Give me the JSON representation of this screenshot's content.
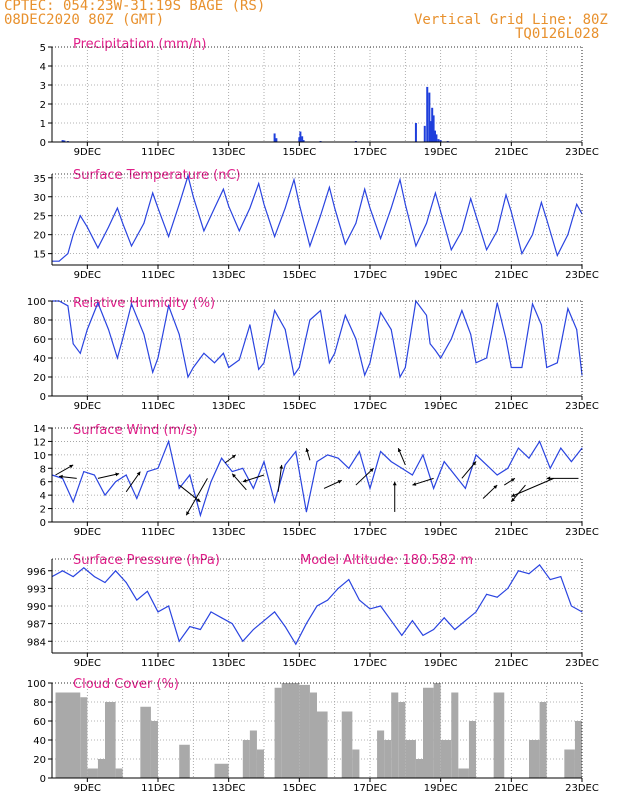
{
  "header": {
    "line1": "CPTEC:   054:23W-31:19S   BAGE (RS)",
    "line2": "08DEC2020 80Z (GMT)",
    "right1": "Vertical Grid Line: 80Z",
    "right2": "TQ0126L028"
  },
  "x_ticks": [
    "9DEC",
    "11DEC",
    "13DEC",
    "15DEC",
    "17DEC",
    "19DEC",
    "21DEC",
    "23DEC"
  ],
  "chart_data": [
    {
      "id": "precip",
      "type": "bar",
      "title": "Precipitation (mm/h)",
      "ylim": [
        0,
        5
      ],
      "yticks": [
        0,
        1,
        2,
        3,
        4,
        5
      ],
      "x_range": [
        8.0,
        23.0
      ],
      "x": [
        8.3,
        8.35,
        8.45,
        14.3,
        14.35,
        15.0,
        15.03,
        15.08,
        15.12,
        15.6,
        16.6,
        18.3,
        18.55,
        18.62,
        18.68,
        18.72,
        18.76,
        18.8,
        18.84,
        18.88,
        18.94,
        19.0,
        19.2
      ],
      "y": [
        0.1,
        0.08,
        0.05,
        0.45,
        0.2,
        0.25,
        0.55,
        0.3,
        0.1,
        0.05,
        0.05,
        1.0,
        0.85,
        2.9,
        2.6,
        1.1,
        1.8,
        1.4,
        0.6,
        0.4,
        0.15,
        0.1,
        0.05
      ]
    },
    {
      "id": "temp",
      "type": "line",
      "title": "Surface Temperature (nC)",
      "ylim": [
        12,
        36
      ],
      "yticks": [
        15,
        20,
        25,
        30,
        35
      ],
      "x_range": [
        8.0,
        23.0
      ],
      "x": [
        8.0,
        8.2,
        8.45,
        8.6,
        8.8,
        9.0,
        9.3,
        9.6,
        9.85,
        10.0,
        10.25,
        10.6,
        10.85,
        11.0,
        11.3,
        11.6,
        11.85,
        12.0,
        12.3,
        12.6,
        12.85,
        13.0,
        13.3,
        13.6,
        13.85,
        14.0,
        14.3,
        14.6,
        14.85,
        15.0,
        15.3,
        15.6,
        15.85,
        16.0,
        16.3,
        16.6,
        16.85,
        17.0,
        17.3,
        17.6,
        17.85,
        18.0,
        18.3,
        18.6,
        18.85,
        19.0,
        19.3,
        19.6,
        19.85,
        20.0,
        20.3,
        20.6,
        20.85,
        21.0,
        21.3,
        21.6,
        21.85,
        22.0,
        22.3,
        22.6,
        22.85,
        23.0
      ],
      "y": [
        13.0,
        13.0,
        15.0,
        20.0,
        25.0,
        22.0,
        16.5,
        22.0,
        27.0,
        23.0,
        17.0,
        23.0,
        31.0,
        27.0,
        19.5,
        28.0,
        35.5,
        30.0,
        21.0,
        27.0,
        32.0,
        27.5,
        21.0,
        27.0,
        33.5,
        28.0,
        19.5,
        27.0,
        34.5,
        28.0,
        17.0,
        25.0,
        32.5,
        27.0,
        17.5,
        23.0,
        32.0,
        27.0,
        19.0,
        27.0,
        34.5,
        28.0,
        17.0,
        23.0,
        31.0,
        26.0,
        16.0,
        21.0,
        29.5,
        25.0,
        16.0,
        21.0,
        30.5,
        26.0,
        15.0,
        20.0,
        28.5,
        24.0,
        14.5,
        20.0,
        28.0,
        25.5
      ]
    },
    {
      "id": "rh",
      "type": "line",
      "title": "Relative Humidity (%)",
      "ylim": [
        0,
        100
      ],
      "yticks": [
        0,
        20,
        40,
        60,
        80,
        100
      ],
      "x_range": [
        8.0,
        23.0
      ],
      "x": [
        8.0,
        8.2,
        8.45,
        8.6,
        8.8,
        9.0,
        9.3,
        9.6,
        9.85,
        10.0,
        10.25,
        10.6,
        10.85,
        11.0,
        11.3,
        11.6,
        11.85,
        12.0,
        12.3,
        12.6,
        12.85,
        13.0,
        13.3,
        13.6,
        13.85,
        14.0,
        14.3,
        14.6,
        14.85,
        15.0,
        15.3,
        15.6,
        15.85,
        16.0,
        16.3,
        16.6,
        16.85,
        17.0,
        17.3,
        17.6,
        17.85,
        18.0,
        18.3,
        18.6,
        18.7,
        18.85,
        19.0,
        19.3,
        19.6,
        19.85,
        20.0,
        20.3,
        20.6,
        20.85,
        21.0,
        21.3,
        21.6,
        21.85,
        22.0,
        22.3,
        22.6,
        22.85,
        23.0
      ],
      "y": [
        100,
        100,
        95,
        55,
        45,
        70,
        98,
        70,
        40,
        60,
        97,
        65,
        25,
        40,
        95,
        65,
        20,
        30,
        45,
        35,
        45,
        30,
        38,
        75,
        28,
        35,
        90,
        70,
        22,
        30,
        80,
        90,
        35,
        45,
        85,
        60,
        22,
        35,
        88,
        70,
        20,
        30,
        100,
        85,
        55,
        48,
        40,
        60,
        90,
        65,
        35,
        40,
        98,
        60,
        30,
        30,
        97,
        75,
        30,
        35,
        92,
        70,
        22
      ]
    },
    {
      "id": "wind",
      "type": "line",
      "title": "Surface Wind (m/s)",
      "ylim": [
        0,
        14
      ],
      "yticks": [
        0,
        2,
        4,
        6,
        8,
        10,
        12,
        14
      ],
      "x_range": [
        8.0,
        23.0
      ],
      "x": [
        8.0,
        8.3,
        8.6,
        8.9,
        9.2,
        9.5,
        9.8,
        10.1,
        10.4,
        10.7,
        11.0,
        11.3,
        11.6,
        11.9,
        12.2,
        12.5,
        12.8,
        13.1,
        13.4,
        13.7,
        14.0,
        14.3,
        14.6,
        14.9,
        15.2,
        15.5,
        15.8,
        16.1,
        16.4,
        16.7,
        17.0,
        17.3,
        17.6,
        17.9,
        18.2,
        18.5,
        18.8,
        19.1,
        19.4,
        19.7,
        20.0,
        20.3,
        20.6,
        20.9,
        21.2,
        21.5,
        21.8,
        22.1,
        22.4,
        22.7,
        23.0
      ],
      "y": [
        7.0,
        6.5,
        3.0,
        7.5,
        7.0,
        4.0,
        6.0,
        7.0,
        3.5,
        7.5,
        8.0,
        12.0,
        5.0,
        7.0,
        1.0,
        6.0,
        9.5,
        7.5,
        8.0,
        5.0,
        9.0,
        3.0,
        8.5,
        10.5,
        1.5,
        9.0,
        10.0,
        9.5,
        8.0,
        10.5,
        5.0,
        10.5,
        9.0,
        8.0,
        7.0,
        10.0,
        5.0,
        9.0,
        7.0,
        5.0,
        10.0,
        8.5,
        7.0,
        8.0,
        11.0,
        9.5,
        12.0,
        8.0,
        11.0,
        9.0,
        11.0
      ]
    },
    {
      "id": "pres",
      "type": "line",
      "title": "Surface Pressure (hPa)",
      "subtitle": "Model Altitude: 180.582 m",
      "ylim": [
        982,
        998
      ],
      "yticks": [
        984,
        987,
        990,
        993,
        996
      ],
      "x_range": [
        8.0,
        23.0
      ],
      "x": [
        8.0,
        8.3,
        8.6,
        8.9,
        9.2,
        9.5,
        9.8,
        10.1,
        10.4,
        10.7,
        11.0,
        11.3,
        11.6,
        11.9,
        12.2,
        12.5,
        12.8,
        13.1,
        13.4,
        13.7,
        14.0,
        14.3,
        14.6,
        14.9,
        15.2,
        15.5,
        15.8,
        16.1,
        16.4,
        16.7,
        17.0,
        17.3,
        17.6,
        17.9,
        18.2,
        18.5,
        18.8,
        19.1,
        19.4,
        19.7,
        20.0,
        20.3,
        20.6,
        20.9,
        21.2,
        21.5,
        21.8,
        22.1,
        22.4,
        22.7,
        23.0
      ],
      "y": [
        995.0,
        996.0,
        995.0,
        996.5,
        995.0,
        994.0,
        996.0,
        994.0,
        991.0,
        992.5,
        989.0,
        990.0,
        984.0,
        986.5,
        986.0,
        989.0,
        988.0,
        987.0,
        984.0,
        986.0,
        987.5,
        989.0,
        986.5,
        983.5,
        987.0,
        990.0,
        991.0,
        993.0,
        994.5,
        991.0,
        989.5,
        990.0,
        987.5,
        985.0,
        987.5,
        985.0,
        986.0,
        988.0,
        986.0,
        987.5,
        989.0,
        992.0,
        991.5,
        993.0,
        996.0,
        995.5,
        997.0,
        994.5,
        995.0,
        990.0,
        989.0
      ]
    },
    {
      "id": "cloud",
      "type": "area",
      "title": "Cloud Cover (%)",
      "ylim": [
        0,
        100
      ],
      "yticks": [
        0,
        20,
        40,
        60,
        80,
        100
      ],
      "x_range": [
        8.0,
        23.0
      ],
      "x": [
        8.0,
        8.1,
        8.8,
        9.0,
        9.3,
        9.5,
        9.8,
        10.0,
        10.3,
        10.5,
        10.8,
        11.0,
        11.3,
        11.6,
        11.9,
        12.2,
        12.6,
        13.0,
        13.3,
        13.4,
        13.6,
        13.8,
        14.0,
        14.2,
        14.3,
        14.5,
        15.0,
        15.3,
        15.5,
        15.8,
        16.0,
        16.2,
        16.5,
        16.7,
        17.0,
        17.2,
        17.4,
        17.6,
        17.8,
        18.0,
        18.3,
        18.5,
        18.8,
        19.0,
        19.3,
        19.5,
        19.8,
        20.0,
        20.3,
        20.5,
        20.8,
        21.0,
        21.2,
        21.5,
        21.8,
        22.0,
        22.3,
        22.5,
        22.8,
        23.0
      ],
      "y": [
        0,
        90,
        85,
        10,
        20,
        80,
        10,
        0,
        0,
        75,
        60,
        0,
        0,
        35,
        0,
        0,
        15,
        0,
        0,
        40,
        50,
        30,
        0,
        0,
        95,
        100,
        98,
        90,
        70,
        0,
        0,
        70,
        30,
        0,
        0,
        50,
        40,
        90,
        80,
        40,
        20,
        95,
        100,
        40,
        90,
        10,
        60,
        0,
        0,
        90,
        0,
        0,
        0,
        40,
        80,
        0,
        0,
        30,
        60,
        0
      ]
    }
  ]
}
